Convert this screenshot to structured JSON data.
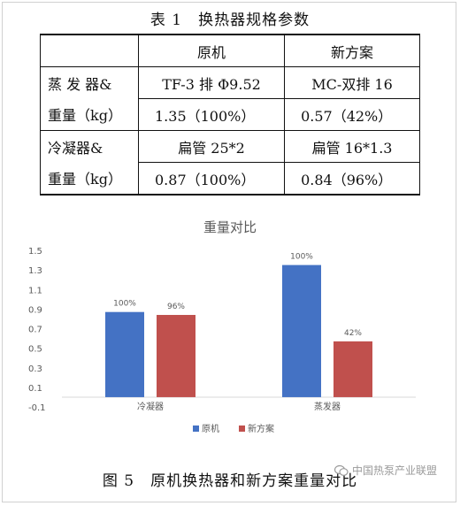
{
  "table": {
    "title": "表 1　换热器规格参数",
    "header": [
      "",
      "原机",
      "新方案"
    ],
    "rows": [
      {
        "label": "蒸 发 器&",
        "orig": "TF-3 排 Φ9.52",
        "new": "MC-双排 16"
      },
      {
        "label": "重量（kg）",
        "orig": "1.35（100%）",
        "new": "0.57（42%）"
      },
      {
        "label": "冷凝器&",
        "orig": "扁管 25*2",
        "new": "扁管 16*1.3"
      },
      {
        "label": "重量（kg）",
        "orig": "0.87（100%）",
        "new": "0.84（96%）"
      }
    ]
  },
  "chart_data": {
    "type": "bar",
    "title": "重量对比",
    "categories": [
      "冷凝器",
      "蒸发器"
    ],
    "series": [
      {
        "name": "原机",
        "values": [
          0.87,
          1.35
        ],
        "labels": [
          "100%",
          "100%"
        ],
        "color": "#4472C4"
      },
      {
        "name": "新方案",
        "values": [
          0.84,
          0.57
        ],
        "labels": [
          "96%",
          "42%"
        ],
        "color": "#C0504D"
      }
    ],
    "ylim": [
      -0.1,
      1.5
    ],
    "yticks": [
      1.5,
      1.3,
      1.1,
      0.9,
      0.7,
      0.5,
      0.3,
      0.1,
      -0.1
    ],
    "ytick_labels": [
      "1.5",
      "1.3",
      "1.1",
      "0.9",
      "0.7",
      "0.5",
      "0.3",
      "0.1",
      "-0.1"
    ],
    "grid": false,
    "legend": "bottom"
  },
  "caption": "图 5　原机换热器和新方案重量对比",
  "watermark": "中国热泵产业联盟",
  "colors": {
    "axis": "#d9d9d9",
    "tick_text": "#595959",
    "title": "#595959"
  }
}
